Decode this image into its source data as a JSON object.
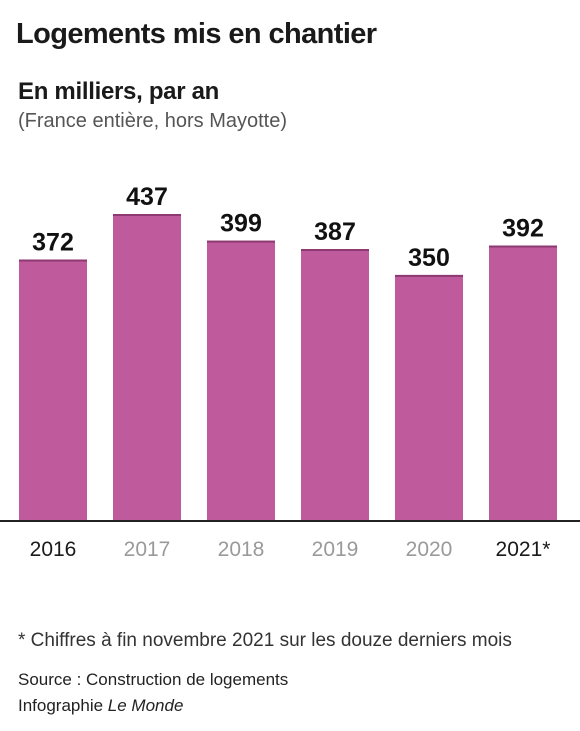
{
  "header": {
    "title": "Logements mis en chantier",
    "subtitle": "En milliers, par an",
    "note": "(France entière, hors Mayotte)"
  },
  "colors": {
    "bar": "#bf5a9c",
    "bar_top": "#8e3a72",
    "axis": "#222222",
    "tick_highlight": "#1a1a1a",
    "tick_muted": "#9a9a9a"
  },
  "chart_data": {
    "type": "bar",
    "categories": [
      "2016",
      "2017",
      "2018",
      "2019",
      "2020",
      "2021*"
    ],
    "values": [
      372,
      437,
      399,
      387,
      350,
      392
    ],
    "highlighted_ticks": [
      "2016",
      "2021*"
    ],
    "ylim": [
      0,
      437
    ],
    "grid": false,
    "xlabel": "",
    "ylabel": ""
  },
  "footer": {
    "footnote": "* Chiffres à fin novembre 2021 sur les douze derniers mois",
    "source": "Source : Construction de logements",
    "credit_prefix": "Infographie ",
    "credit_brand": "Le Monde"
  }
}
